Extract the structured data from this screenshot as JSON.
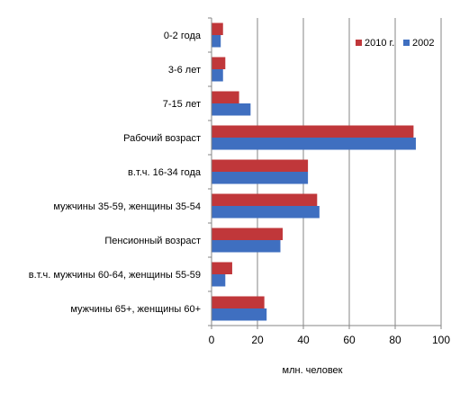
{
  "chart_data": {
    "type": "bar",
    "orientation": "horizontal",
    "categories": [
      "0-2 года",
      "3-6 лет",
      "7-15 лет",
      "Рабочий возраст",
      "в.т.ч.  16-34 года",
      "мужчины 35-59, женщины 35-54",
      "Пенсионный возраст",
      "в.т.ч.  мужчины 60-64, женщины 55-59",
      "мужчины 65+, женщины 60+"
    ],
    "series": [
      {
        "name": "2010 г.",
        "color": "#c0373a",
        "values": [
          5,
          6,
          12,
          88,
          42,
          46,
          31,
          9,
          23
        ]
      },
      {
        "name": "2002",
        "color": "#3f6fc0",
        "values": [
          4,
          5,
          17,
          89,
          42,
          47,
          30,
          6,
          24
        ]
      }
    ],
    "xlabel": "млн. человек",
    "xlim": [
      0,
      100
    ],
    "xticks": [
      0,
      20,
      40,
      60,
      80,
      100
    ],
    "grid": true,
    "legend_position": "top-right"
  }
}
